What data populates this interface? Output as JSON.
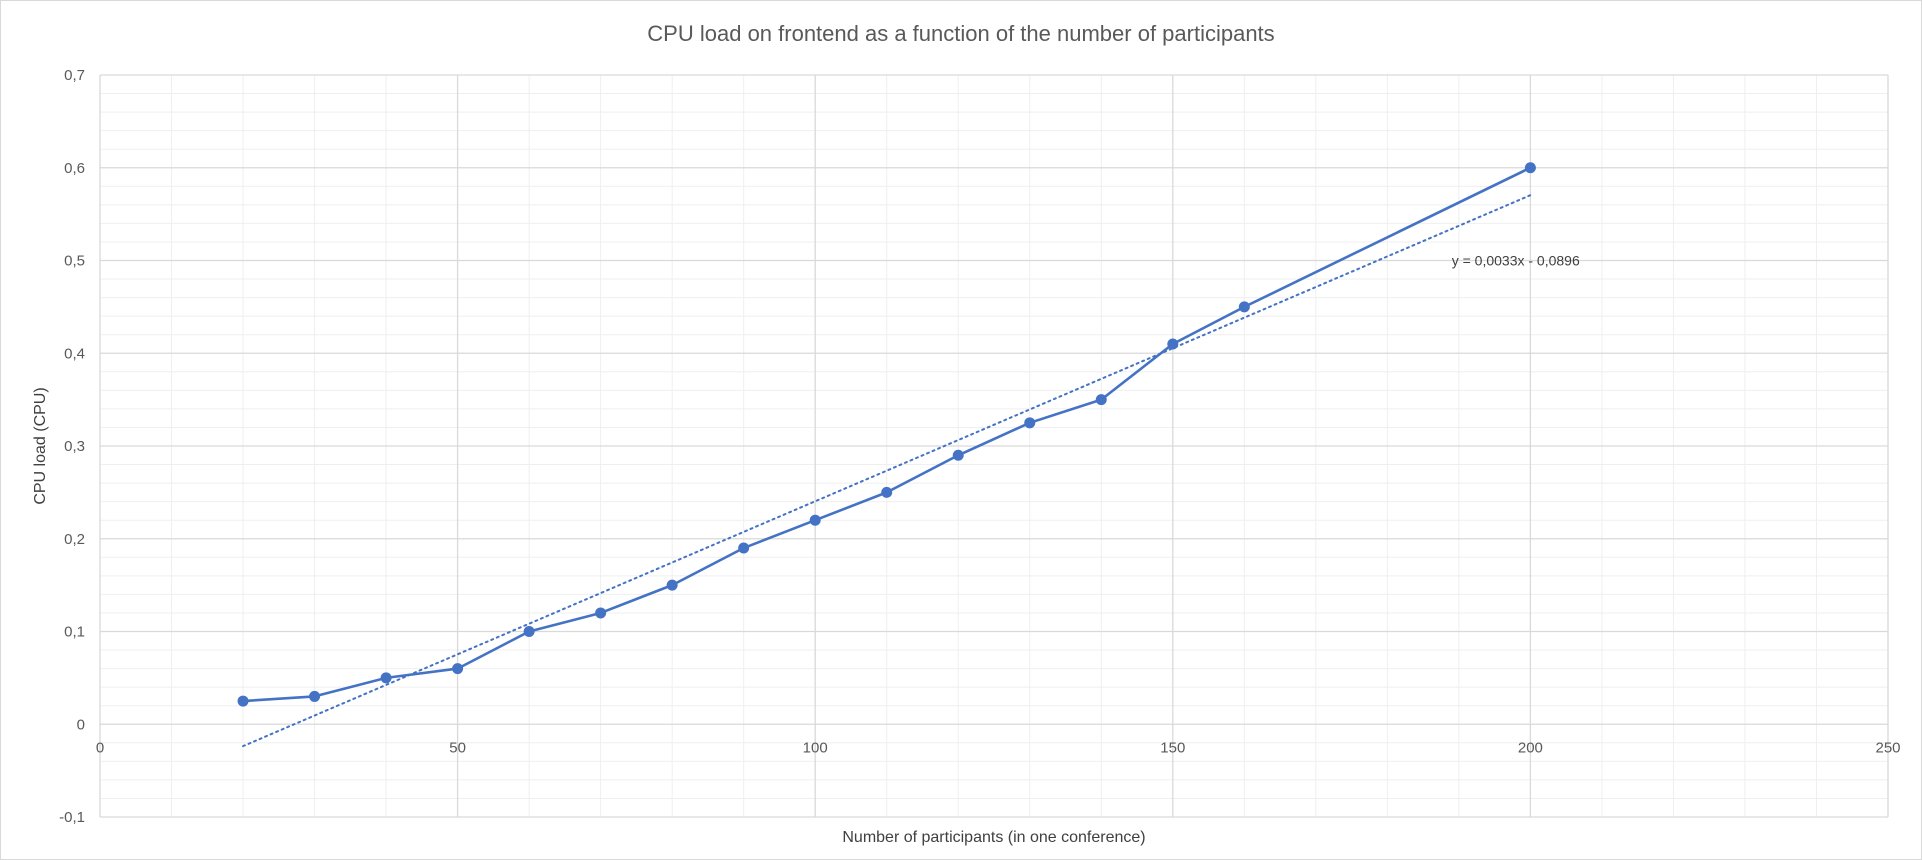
{
  "chart_data": {
    "type": "scatter",
    "title": "CPU load on frontend as a function of the number of participants",
    "xlabel": "Number of participants (in one conference)",
    "ylabel": "CPU load (CPU)",
    "xlim": [
      0,
      250
    ],
    "ylim": [
      -0.1,
      0.7
    ],
    "x_major_step": 50,
    "x_minor_step": 10,
    "y_major_step": 0.1,
    "y_minor_step": 0.02,
    "x_tick_labels": [
      "0",
      "50",
      "100",
      "150",
      "200",
      "250"
    ],
    "y_tick_labels": [
      "-0,1",
      "0",
      "0,1",
      "0,2",
      "0,3",
      "0,4",
      "0,5",
      "0,6",
      "0,7"
    ],
    "grid": "major and minor",
    "legend": "none",
    "series": [
      {
        "style": "line-with-markers",
        "color": "#4472C4",
        "x": [
          20,
          30,
          40,
          50,
          60,
          70,
          80,
          90,
          100,
          110,
          120,
          130,
          140,
          150,
          160,
          200
        ],
        "y": [
          0.025,
          0.03,
          0.05,
          0.06,
          0.1,
          0.12,
          0.15,
          0.19,
          0.22,
          0.25,
          0.29,
          0.325,
          0.35,
          0.41,
          0.45,
          0.6
        ]
      }
    ],
    "trendline": {
      "type": "linear",
      "style": "dotted",
      "color": "#4472C4",
      "slope": 0.0033,
      "intercept": -0.0896,
      "x_range": [
        20,
        200
      ],
      "label": "y = 0,0033x - 0,0896"
    }
  }
}
